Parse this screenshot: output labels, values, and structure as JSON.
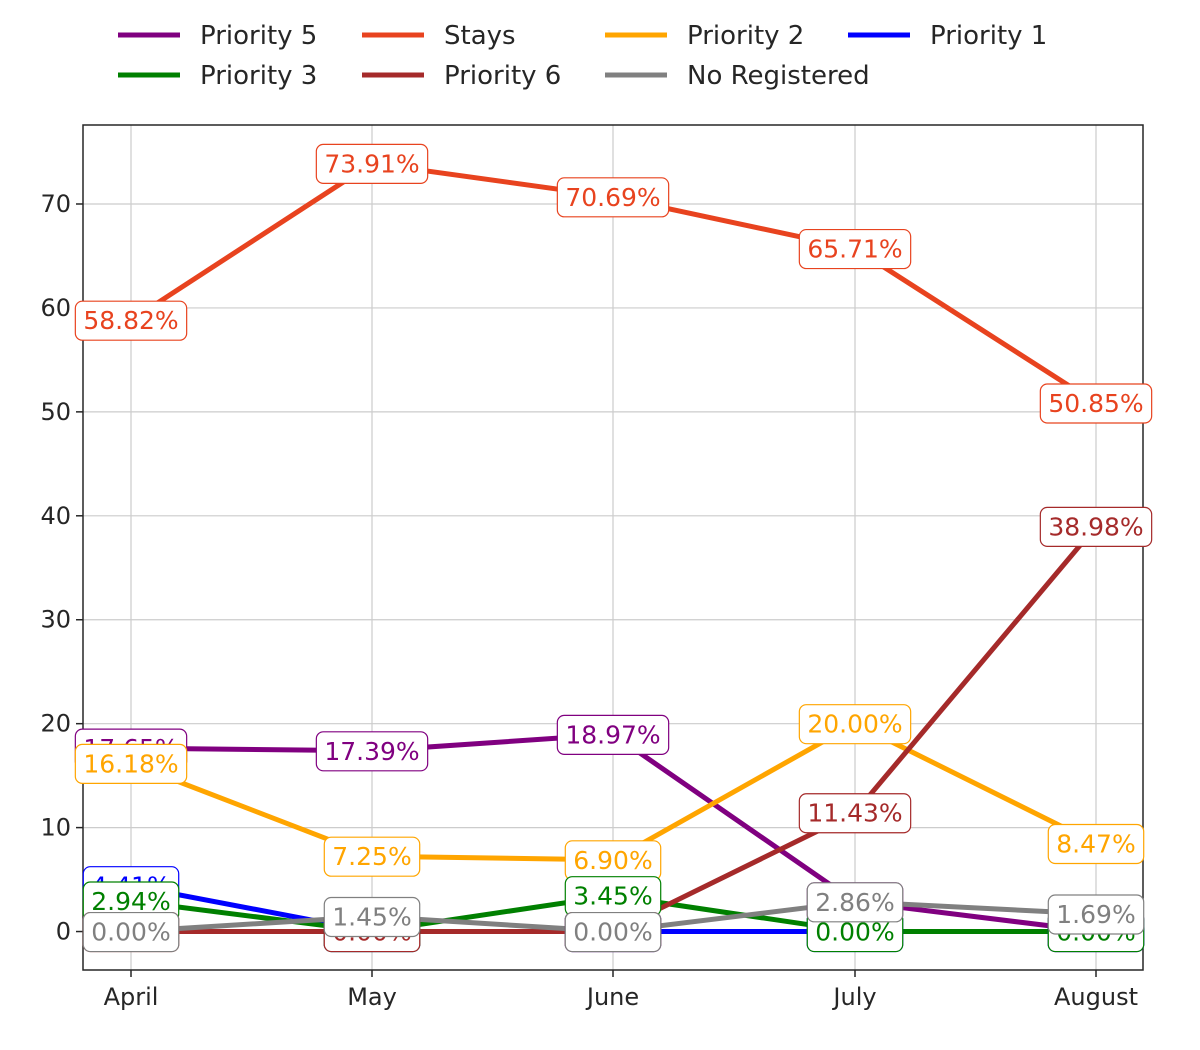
{
  "chart_data": {
    "type": "line",
    "title": "",
    "xlabel": "",
    "ylabel": "",
    "categories": [
      "April",
      "May",
      "June",
      "July",
      "August"
    ],
    "ylim": [
      -3.7,
      77.6
    ],
    "yticks": [
      0,
      10,
      20,
      30,
      40,
      50,
      60,
      70
    ],
    "grid": true,
    "legend_position": "top-center, above plot, 4 columns",
    "value_suffix": "%",
    "series": [
      {
        "name": "Priority 5",
        "color": "#800080",
        "values": [
          17.65,
          17.39,
          18.97,
          2.86,
          0.0
        ]
      },
      {
        "name": "Stays",
        "color": "#e8431f",
        "values": [
          58.82,
          73.91,
          70.69,
          65.71,
          50.85
        ]
      },
      {
        "name": "Priority 2",
        "color": "#ffa500",
        "values": [
          16.18,
          7.25,
          6.9,
          20.0,
          8.47
        ]
      },
      {
        "name": "Priority 1",
        "color": "#0000ff",
        "values": [
          4.41,
          0.0,
          0.0,
          0.0,
          0.0
        ]
      },
      {
        "name": "Priority 3",
        "color": "#008000",
        "values": [
          2.94,
          0.0,
          3.45,
          0.0,
          0.0
        ]
      },
      {
        "name": "Priority 6",
        "color": "#a52a2a",
        "values": [
          0.0,
          0.0,
          0.0,
          11.43,
          38.98
        ]
      },
      {
        "name": "No Registered",
        "color": "#808080",
        "values": [
          0.0,
          1.45,
          0.0,
          2.86,
          1.69
        ]
      }
    ]
  }
}
